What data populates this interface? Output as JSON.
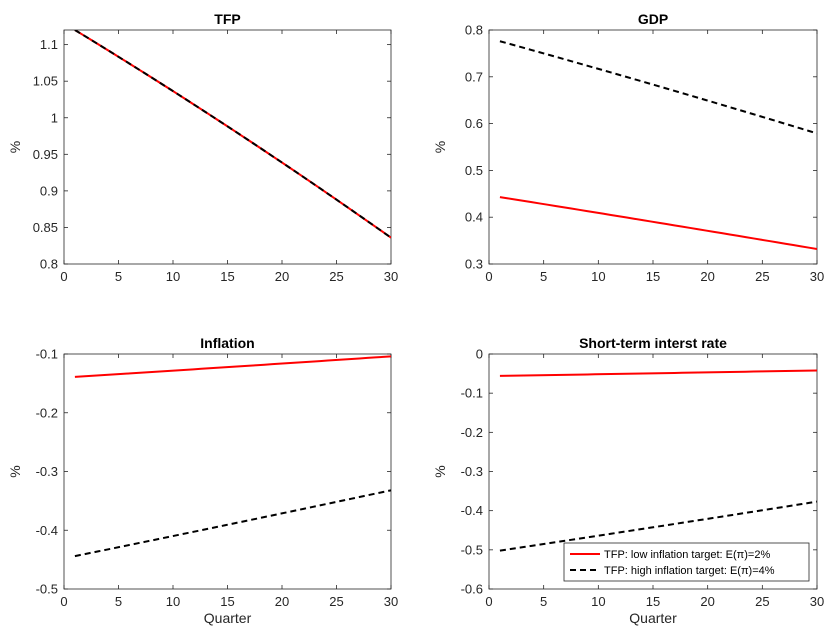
{
  "chart_data": [
    {
      "type": "line",
      "title": "TFP",
      "xlabel": "",
      "ylabel": "%",
      "xlim": [
        0,
        30
      ],
      "ylim": [
        0.8,
        1.12
      ],
      "xticks": [
        0,
        5,
        10,
        15,
        20,
        25,
        30
      ],
      "yticks": [
        0.8,
        0.85,
        0.9,
        0.95,
        1,
        1.05,
        1.1
      ],
      "grid": false,
      "series": [
        {
          "color": "#ff0000",
          "dash": "solid",
          "x": [
            1,
            30
          ],
          "y": [
            1.12,
            0.836
          ],
          "curvature": 0.15
        },
        {
          "color": "#000000",
          "dash": "dashed",
          "x": [
            1,
            30
          ],
          "y": [
            1.12,
            0.836
          ],
          "curvature": 0.15
        }
      ]
    },
    {
      "type": "line",
      "title": "GDP",
      "xlabel": "",
      "ylabel": "%",
      "xlim": [
        0,
        30
      ],
      "ylim": [
        0.3,
        0.8
      ],
      "xticks": [
        0,
        5,
        10,
        15,
        20,
        25,
        30
      ],
      "yticks": [
        0.3,
        0.4,
        0.5,
        0.6,
        0.7,
        0.8
      ],
      "grid": false,
      "series": [
        {
          "color": "#ff0000",
          "dash": "solid",
          "x": [
            1,
            30
          ],
          "y": [
            0.443,
            0.332
          ],
          "curvature": 0.05
        },
        {
          "color": "#000000",
          "dash": "dashed",
          "x": [
            1,
            30
          ],
          "y": [
            0.776,
            0.579
          ],
          "curvature": 0.1
        }
      ]
    },
    {
      "type": "line",
      "title": "Inflation",
      "xlabel": "Quarter",
      "ylabel": "%",
      "xlim": [
        0,
        30
      ],
      "ylim": [
        -0.5,
        -0.1
      ],
      "xticks": [
        0,
        5,
        10,
        15,
        20,
        25,
        30
      ],
      "yticks": [
        -0.5,
        -0.4,
        -0.3,
        -0.2,
        -0.1
      ],
      "grid": false,
      "series": [
        {
          "color": "#ff0000",
          "dash": "solid",
          "x": [
            1,
            30
          ],
          "y": [
            -0.139,
            -0.104
          ],
          "curvature": 0.05
        },
        {
          "color": "#000000",
          "dash": "dashed",
          "x": [
            1,
            30
          ],
          "y": [
            -0.444,
            -0.332
          ],
          "curvature": 0.05
        }
      ]
    },
    {
      "type": "line",
      "title": "Short-term interst rate",
      "xlabel": "Quarter",
      "ylabel": "%",
      "xlim": [
        0,
        30
      ],
      "ylim": [
        -0.6,
        0
      ],
      "xticks": [
        0,
        5,
        10,
        15,
        20,
        25,
        30
      ],
      "yticks": [
        -0.6,
        -0.5,
        -0.4,
        -0.3,
        -0.2,
        -0.1,
        0
      ],
      "grid": false,
      "legend": "bottom-right",
      "series": [
        {
          "name": "TFP: low inflation target: E(π)=2%",
          "color": "#ff0000",
          "dash": "solid",
          "x": [
            1,
            30
          ],
          "y": [
            -0.056,
            -0.042
          ],
          "curvature": 0.03
        },
        {
          "name": "TFP: high inflation target: E(π)=4%",
          "color": "#000000",
          "dash": "dashed",
          "x": [
            1,
            30
          ],
          "y": [
            -0.502,
            -0.377
          ],
          "curvature": 0.05
        }
      ]
    }
  ]
}
